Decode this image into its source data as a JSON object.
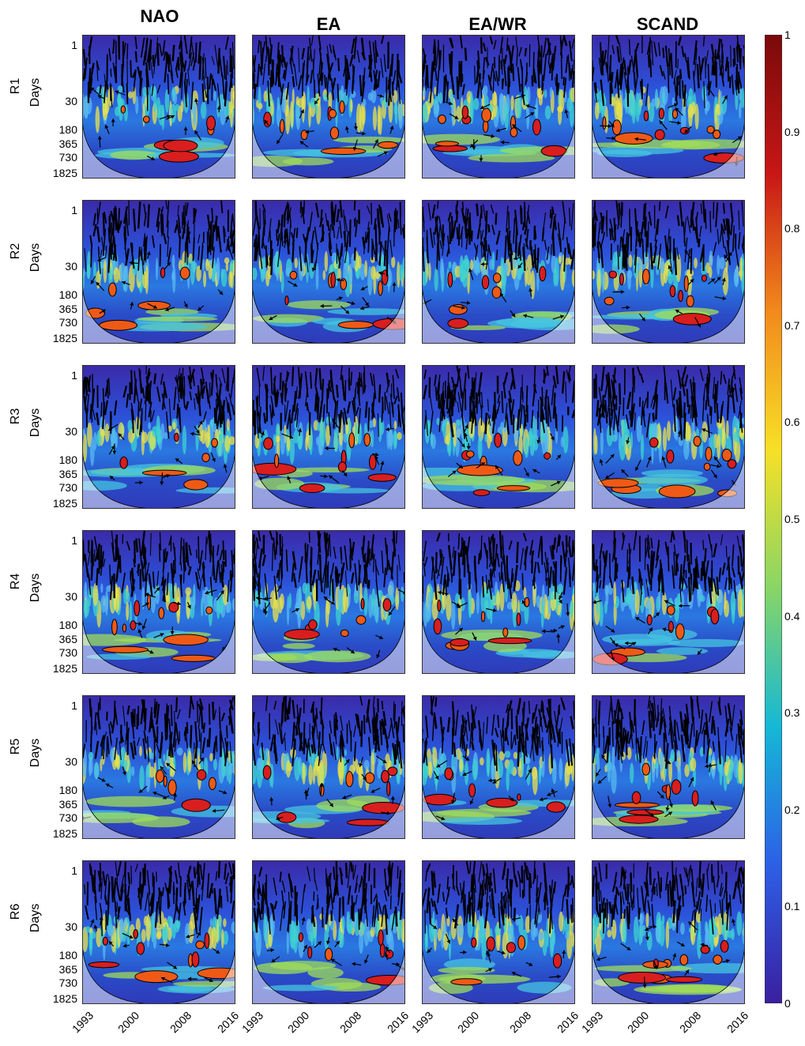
{
  "chart_data": {
    "type": "heatmap",
    "columns": [
      "NAO",
      "EA",
      "EA/WR",
      "SCAND"
    ],
    "rows": [
      "R1",
      "R2",
      "R3",
      "R4",
      "R5",
      "R6"
    ],
    "ylabel": "Days",
    "yticks": [
      "1",
      "30",
      "180",
      "365",
      "730",
      "1825"
    ],
    "xticks": [
      "1993",
      "2000",
      "2008",
      "2016"
    ],
    "colorbar": {
      "min": 0,
      "max": 1,
      "ticks": [
        "0",
        "0.1",
        "0.2",
        "0.3",
        "0.4",
        "0.5",
        "0.6",
        "0.7",
        "0.8",
        "0.9",
        "1"
      ],
      "colors": [
        "#3a1fa0",
        "#2d5fe6",
        "#15b8d6",
        "#88d566",
        "#f7e026",
        "#f28a1c",
        "#c81616",
        "#7a0a0a"
      ]
    }
  }
}
